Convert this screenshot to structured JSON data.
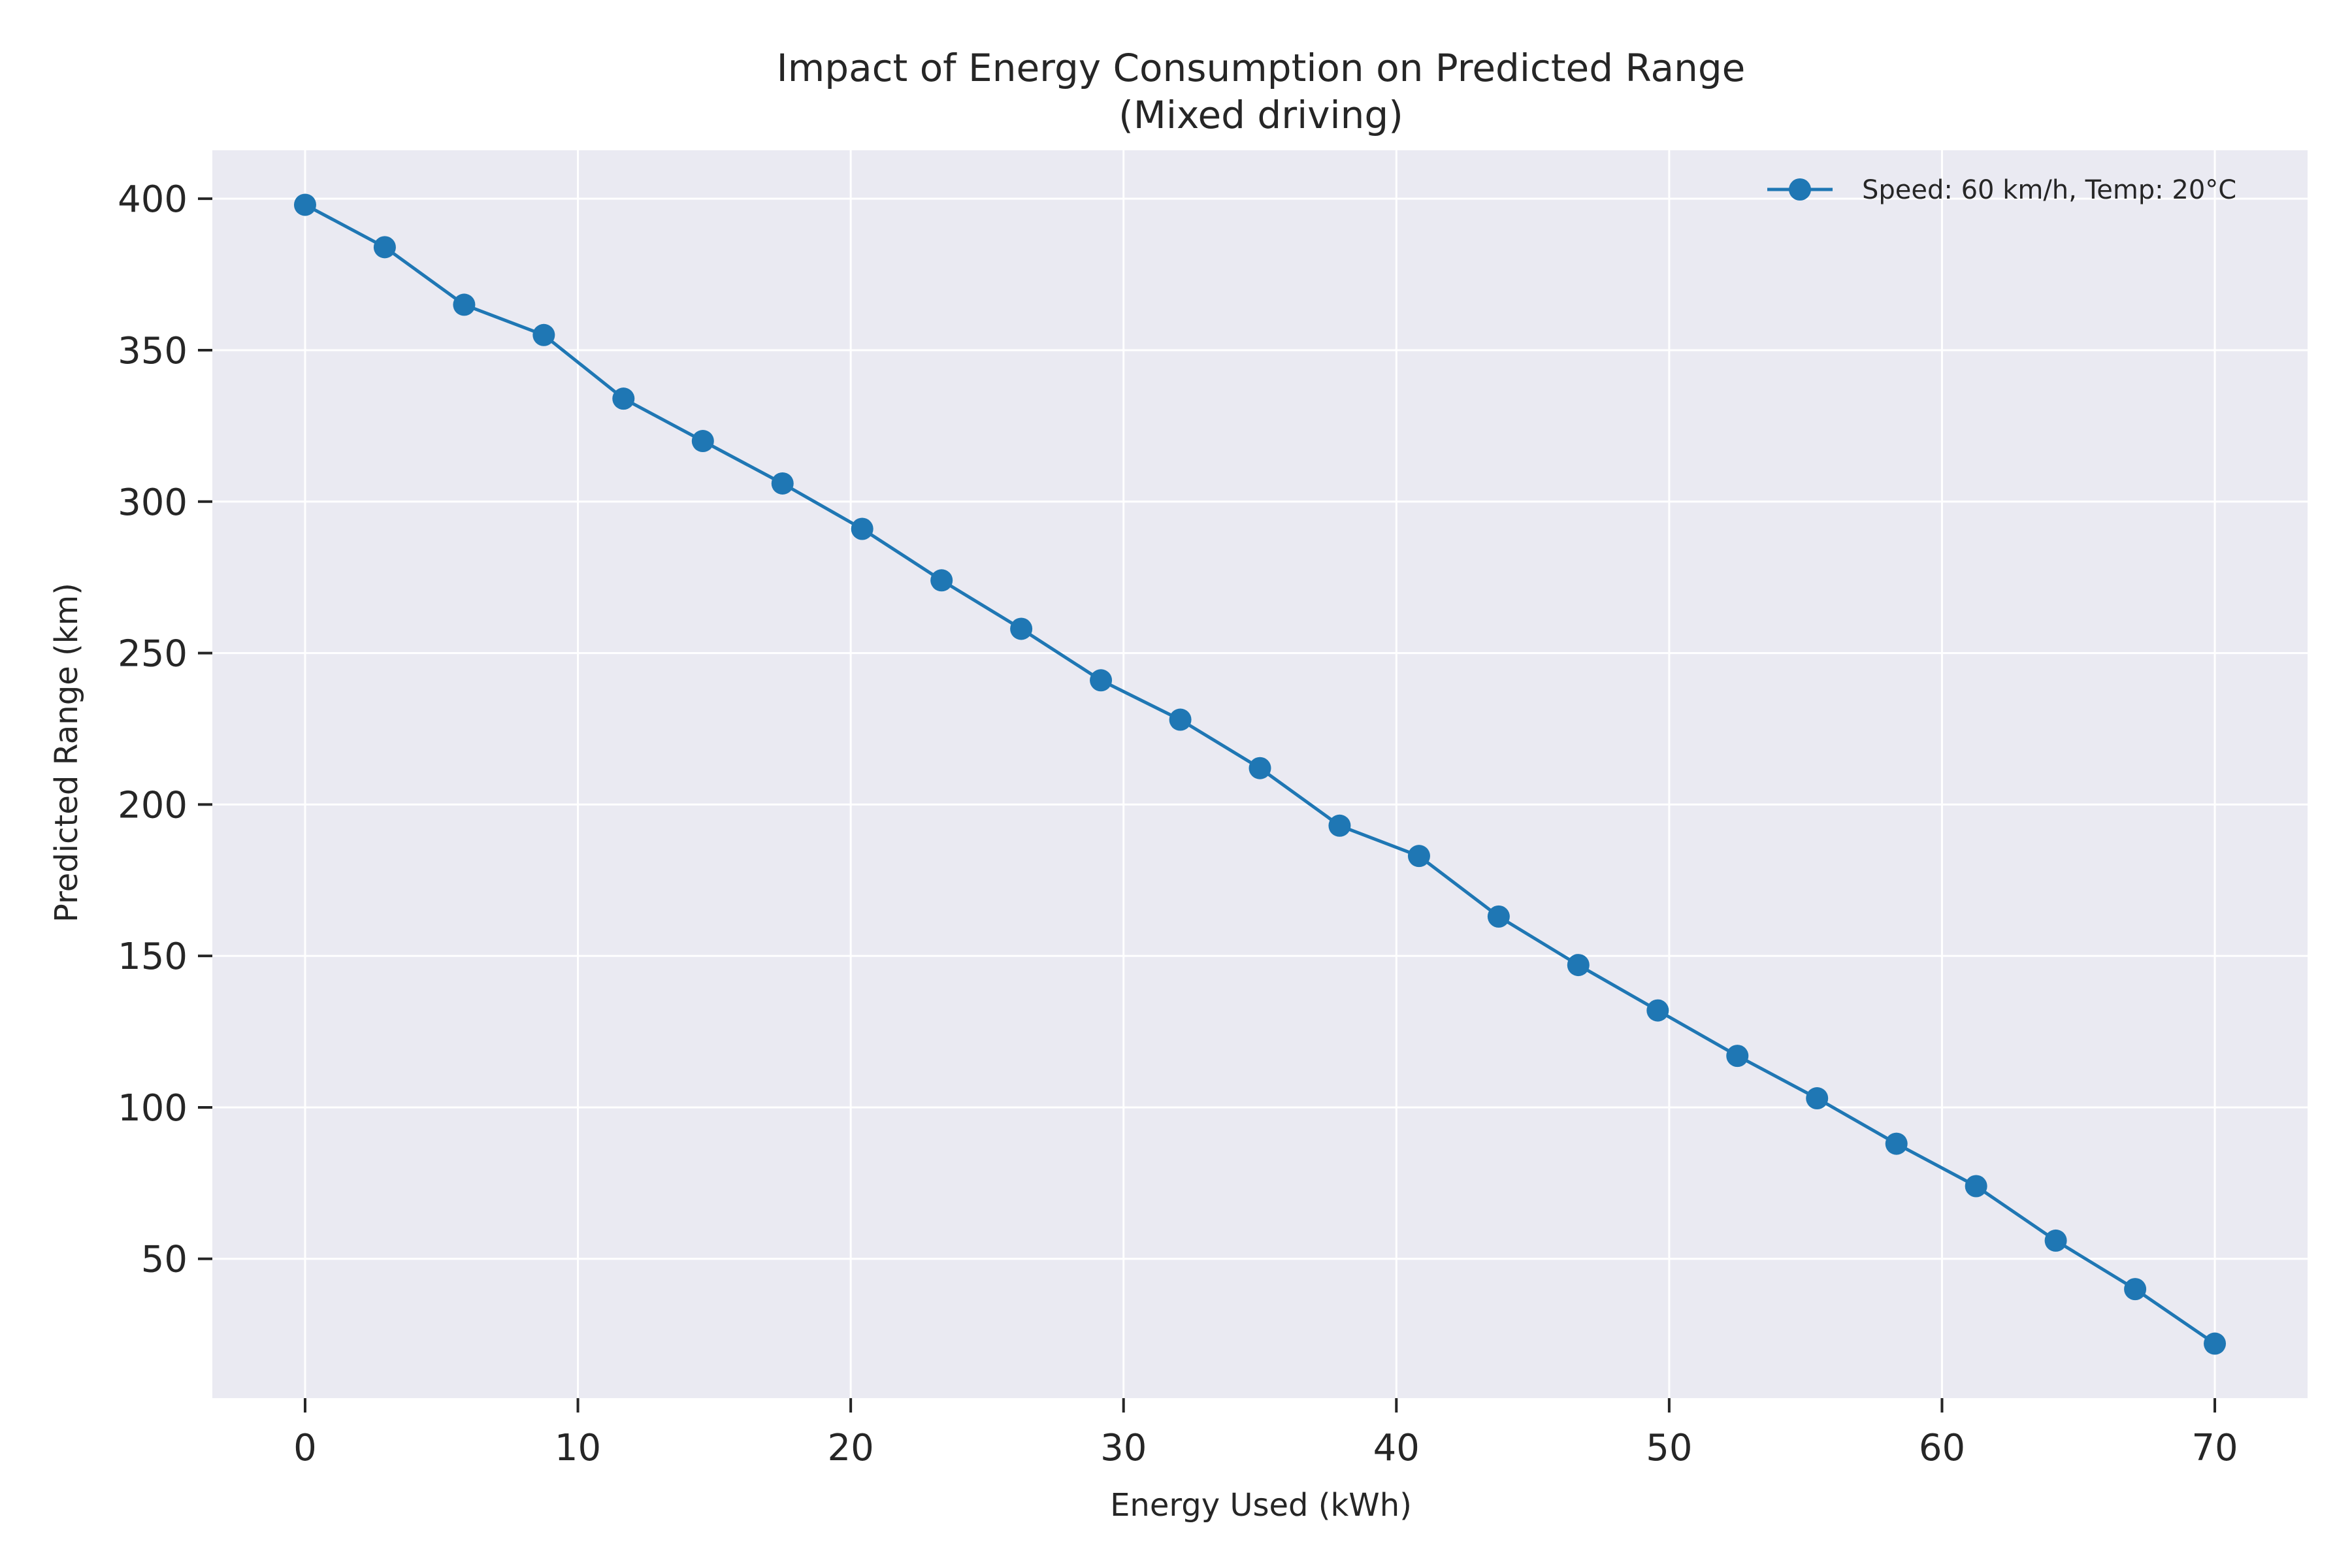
{
  "chart_data": {
    "type": "line",
    "title": "Impact of Energy Consumption on Predicted Range",
    "subtitle": "(Mixed driving)",
    "xlabel": "Energy Used (kWh)",
    "ylabel": "Predicted Range (km)",
    "xlim": [
      -3.4,
      73.4
    ],
    "ylim": [
      4,
      416
    ],
    "xticks": [
      0,
      10,
      20,
      30,
      40,
      50,
      60,
      70
    ],
    "yticks": [
      50,
      100,
      150,
      200,
      250,
      300,
      350,
      400
    ],
    "grid": true,
    "legend_position": "top-right",
    "series": [
      {
        "name": "Speed: 60 km/h, Temp: 20°C",
        "color": "#1f77b4",
        "marker": "circle",
        "x": [
          0,
          2.92,
          5.83,
          8.75,
          11.67,
          14.58,
          17.5,
          20.42,
          23.33,
          26.25,
          29.17,
          32.08,
          35.0,
          37.92,
          40.83,
          43.75,
          46.67,
          49.58,
          52.5,
          55.42,
          58.33,
          61.25,
          64.17,
          67.08,
          70.0
        ],
        "y": [
          398,
          384,
          365,
          355,
          334,
          320,
          306,
          291,
          274,
          258,
          241,
          228,
          212,
          193,
          183,
          163,
          147,
          132,
          117,
          103,
          88,
          74,
          56,
          40,
          22
        ]
      }
    ]
  },
  "colors": {
    "plot_background": "#eaeaf2",
    "grid": "#ffffff",
    "text": "#262626"
  }
}
